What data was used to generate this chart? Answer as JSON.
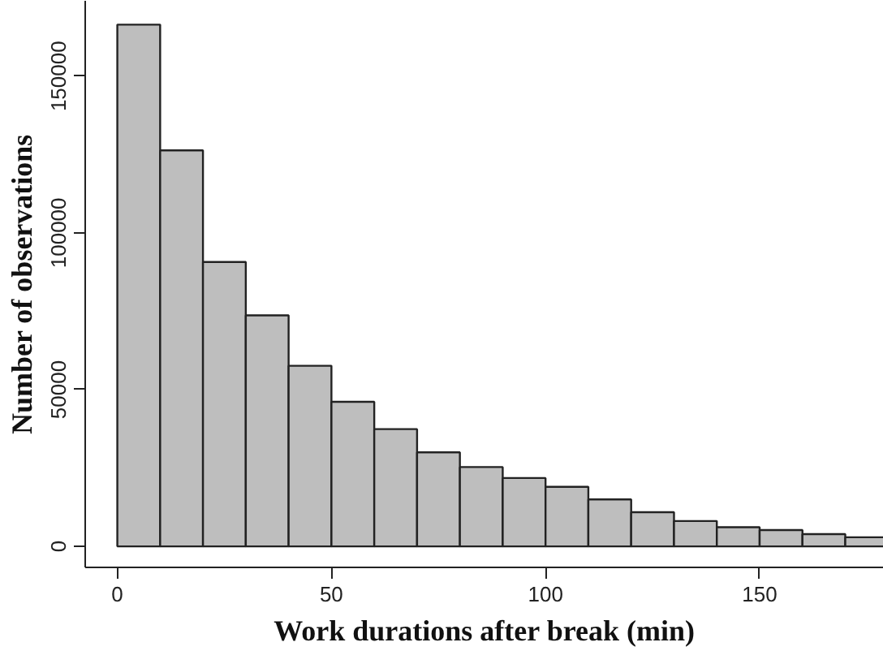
{
  "chart_data": {
    "type": "histogram",
    "xlabel": "Work durations after break (min)",
    "ylabel": "Number of observations",
    "bins": [
      0,
      10,
      20,
      30,
      40,
      50,
      60,
      70,
      80,
      90,
      100,
      110,
      120,
      130,
      140,
      150,
      160,
      170,
      180
    ],
    "values": [
      166400,
      126300,
      90700,
      73700,
      57600,
      46100,
      37400,
      30000,
      25300,
      21800,
      19000,
      15000,
      10900,
      8100,
      6100,
      5200,
      3900,
      2900
    ],
    "color": "#bebebe",
    "xlim": [
      -7.5,
      179
    ],
    "ylim": [
      -6700,
      174000
    ],
    "xticks": [
      0,
      50,
      100,
      150
    ],
    "yticks": [
      0,
      50000,
      100000,
      150000
    ],
    "grid": false
  }
}
